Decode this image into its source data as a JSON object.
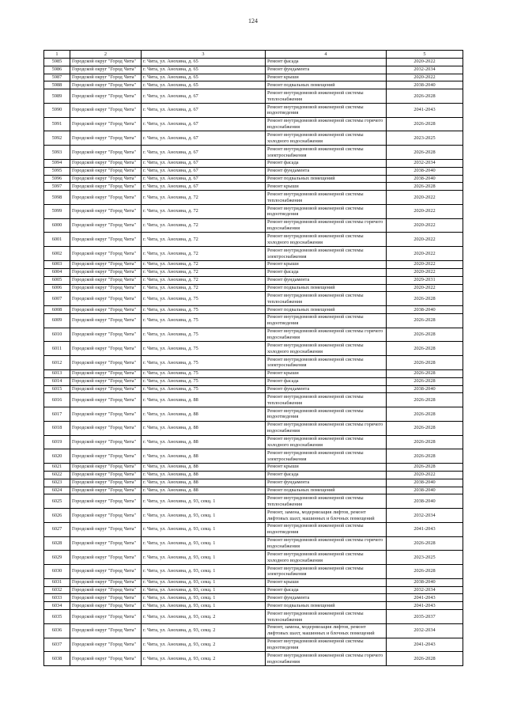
{
  "page": {
    "number": "124"
  },
  "table": {
    "headers": [
      "1",
      "2",
      "3",
      "4",
      "5"
    ],
    "column_names": [
      "index",
      "municipality",
      "address",
      "work-type",
      "period"
    ],
    "rows": [
      [
        "5985",
        "Городской округ \"Город Чита\"",
        "г. Чита, ул. Анохина, д. 65",
        "Ремонт фасада",
        "2020-2022"
      ],
      [
        "5986",
        "Городской округ \"Город Чита\"",
        "г. Чита, ул. Анохина, д. 65",
        "Ремонт фундамента",
        "2032-2034"
      ],
      [
        "5987",
        "Городской округ \"Город Чита\"",
        "г. Чита, ул. Анохина, д. 65",
        "Ремонт крыши",
        "2020-2022"
      ],
      [
        "5988",
        "Городской округ \"Город Чита\"",
        "г. Чита, ул. Анохина, д. 65",
        "Ремонт подвальных помещений",
        "2038-2040"
      ],
      [
        "5989",
        "Городской округ \"Город Чита\"",
        "г. Чита, ул. Анохина, д. 67",
        "Ремонт внутридомовой инженерной системы теплоснабжения",
        "2026-2028"
      ],
      [
        "5990",
        "Городской округ \"Город Чита\"",
        "г. Чита, ул. Анохина, д. 67",
        "Ремонт внутридомовой инженерной системы водоотведения",
        "2041-2043"
      ],
      [
        "5991",
        "Городской округ \"Город Чита\"",
        "г. Чита, ул. Анохина, д. 67",
        "Ремонт внутридомовой инженерной системы горячего водоснабжения",
        "2026-2028"
      ],
      [
        "5992",
        "Городской округ \"Город Чита\"",
        "г. Чита, ул. Анохина, д. 67",
        "Ремонт внутридомовой инженерной системы холодного водоснабжения",
        "2023-2025"
      ],
      [
        "5993",
        "Городской округ \"Город Чита\"",
        "г. Чита, ул. Анохина, д. 67",
        "Ремонт внутридомовой инженерной системы электроснабжения",
        "2026-2028"
      ],
      [
        "5994",
        "Городской округ \"Город Чита\"",
        "г. Чита, ул. Анохина, д. 67",
        "Ремонт фасада",
        "2032-2034"
      ],
      [
        "5995",
        "Городской округ \"Город Чита\"",
        "г. Чита, ул. Анохина, д. 67",
        "Ремонт фундамента",
        "2038-2040"
      ],
      [
        "5996",
        "Городской округ \"Город Чита\"",
        "г. Чита, ул. Анохина, д. 67",
        "Ремонт подвальных помещений",
        "2038-2040"
      ],
      [
        "5997",
        "Городской округ \"Город Чита\"",
        "г. Чита, ул. Анохина, д. 67",
        "Ремонт крыши",
        "2026-2028"
      ],
      [
        "5998",
        "Городской округ \"Город Чита\"",
        "г. Чита, ул. Анохина, д. 72",
        "Ремонт внутридомовой инженерной системы теплоснабжения",
        "2020-2022"
      ],
      [
        "5999",
        "Городской округ \"Город Чита\"",
        "г. Чита, ул. Анохина, д. 72",
        "Ремонт внутридомовой инженерной системы водоотведения",
        "2020-2022"
      ],
      [
        "6000",
        "Городской округ \"Город Чита\"",
        "г. Чита, ул. Анохина, д. 72",
        "Ремонт внутридомовой инженерной системы горячего водоснабжения",
        "2020-2022"
      ],
      [
        "6001",
        "Городской округ \"Город Чита\"",
        "г. Чита, ул. Анохина, д. 72",
        "Ремонт внутридомовой инженерной системы холодного водоснабжения",
        "2020-2022"
      ],
      [
        "6002",
        "Городской округ \"Город Чита\"",
        "г. Чита, ул. Анохина, д. 72",
        "Ремонт внутридомовой инженерной системы электроснабжения",
        "2020-2022"
      ],
      [
        "6003",
        "Городской округ \"Город Чита\"",
        "г. Чита, ул. Анохина, д. 72",
        "Ремонт крыши",
        "2020-2022"
      ],
      [
        "6004",
        "Городской округ \"Город Чита\"",
        "г. Чита, ул. Анохина, д. 72",
        "Ремонт фасада",
        "2020-2022"
      ],
      [
        "6005",
        "Городской округ \"Город Чита\"",
        "г. Чита, ул. Анохина, д. 72",
        "Ремонт фундамента",
        "2029-2031"
      ],
      [
        "6006",
        "Городской округ \"Город Чита\"",
        "г. Чита, ул. Анохина, д. 72",
        "Ремонт подвальных помещений",
        "2020-2022"
      ],
      [
        "6007",
        "Городской округ \"Город Чита\"",
        "г. Чита, ул. Анохина, д. 75",
        "Ремонт внутридомовой инженерной системы теплоснабжения",
        "2026-2028"
      ],
      [
        "6008",
        "Городской округ \"Город Чита\"",
        "г. Чита, ул. Анохина, д. 75",
        "Ремонт подвальных помещений",
        "2038-2040"
      ],
      [
        "6009",
        "Городской округ \"Город Чита\"",
        "г. Чита, ул. Анохина, д. 75",
        "Ремонт внутридомовой инженерной системы водоотведения",
        "2026-2028"
      ],
      [
        "6010",
        "Городской округ \"Город Чита\"",
        "г. Чита, ул. Анохина, д. 75",
        "Ремонт внутридомовой инженерной системы горячего водоснабжения",
        "2026-2028"
      ],
      [
        "6011",
        "Городской округ \"Город Чита\"",
        "г. Чита, ул. Анохина, д. 75",
        "Ремонт внутридомовой инженерной системы холодного водоснабжения",
        "2026-2028"
      ],
      [
        "6012",
        "Городской округ \"Город Чита\"",
        "г. Чита, ул. Анохина, д. 75",
        "Ремонт внутридомовой инженерной системы электроснабжения",
        "2026-2028"
      ],
      [
        "6013",
        "Городской округ \"Город Чита\"",
        "г. Чита, ул. Анохина, д. 75",
        "Ремонт крыши",
        "2026-2028"
      ],
      [
        "6014",
        "Городской округ \"Город Чита\"",
        "г. Чита, ул. Анохина, д. 75",
        "Ремонт фасада",
        "2026-2028"
      ],
      [
        "6015",
        "Городской округ \"Город Чита\"",
        "г. Чита, ул. Анохина, д. 75",
        "Ремонт фундамента",
        "2038-2040"
      ],
      [
        "6016",
        "Городской округ \"Город Чита\"",
        "г. Чита, ул. Анохина, д. 88",
        "Ремонт внутридомовой инженерной системы теплоснабжения",
        "2026-2028"
      ],
      [
        "6017",
        "Городской округ \"Город Чита\"",
        "г. Чита, ул. Анохина, д. 88",
        "Ремонт внутридомовой инженерной системы водоотведения",
        "2026-2028"
      ],
      [
        "6018",
        "Городской округ \"Город Чита\"",
        "г. Чита, ул. Анохина, д. 88",
        "Ремонт внутридомовой инженерной системы горячего водоснабжения",
        "2026-2028"
      ],
      [
        "6019",
        "Городской округ \"Город Чита\"",
        "г. Чита, ул. Анохина, д. 88",
        "Ремонт внутридомовой инженерной системы холодного водоснабжения",
        "2026-2028"
      ],
      [
        "6020",
        "Городской округ \"Город Чита\"",
        "г. Чита, ул. Анохина, д. 88",
        "Ремонт внутридомовой инженерной системы электроснабжения",
        "2026-2028"
      ],
      [
        "6021",
        "Городской округ \"Город Чита\"",
        "г. Чита, ул. Анохина, д. 88",
        "Ремонт крыши",
        "2026-2028"
      ],
      [
        "6022",
        "Городской округ \"Город Чита\"",
        "г. Чита, ул. Анохина, д. 88",
        "Ремонт фасада",
        "2020-2022"
      ],
      [
        "6023",
        "Городской округ \"Город Чита\"",
        "г. Чита, ул. Анохина, д. 88",
        "Ремонт фундамента",
        "2038-2040"
      ],
      [
        "6024",
        "Городской округ \"Город Чита\"",
        "г. Чита, ул. Анохина, д. 88",
        "Ремонт подвальных помещений",
        "2038-2040"
      ],
      [
        "6025",
        "Городской округ \"Город Чита\"",
        "г. Чита, ул. Анохина, д. 93, секц. 1",
        "Ремонт внутридомовой инженерной системы теплоснабжения",
        "2038-2040"
      ],
      [
        "6026",
        "Городской округ \"Город Чита\"",
        "г. Чита, ул. Анохина, д. 93, секц. 1",
        "Ремонт, замена, модернизация лифтов, ремонт лифтовых шахт, машинных и блочных помещений",
        "2032-2034"
      ],
      [
        "6027",
        "Городской округ \"Город Чита\"",
        "г. Чита, ул. Анохина, д. 93, секц. 1",
        "Ремонт внутридомовой инженерной системы водоотведения",
        "2041-2043"
      ],
      [
        "6028",
        "Городской округ \"Город Чита\"",
        "г. Чита, ул. Анохина, д. 93, секц. 1",
        "Ремонт внутридомовой инженерной системы горячего водоснабжения",
        "2026-2028"
      ],
      [
        "6029",
        "Городской округ \"Город Чита\"",
        "г. Чита, ул. Анохина, д. 93, секц. 1",
        "Ремонт внутридомовой инженерной системы холодного водоснабжения",
        "2023-2025"
      ],
      [
        "6030",
        "Городской округ \"Город Чита\"",
        "г. Чита, ул. Анохина, д. 93, секц. 1",
        "Ремонт внутридомовой инженерной системы электроснабжения",
        "2026-2028"
      ],
      [
        "6031",
        "Городской округ \"Город Чита\"",
        "г. Чита, ул. Анохина, д. 93, секц. 1",
        "Ремонт крыши",
        "2038-2040"
      ],
      [
        "6032",
        "Городской округ \"Город Чита\"",
        "г. Чита, ул. Анохина, д. 93, секц. 1",
        "Ремонт фасада",
        "2032-2034"
      ],
      [
        "6033",
        "Городской округ \"Город Чита\"",
        "г. Чита, ул. Анохина, д. 93, секц. 1",
        "Ремонт фундамента",
        "2041-2043"
      ],
      [
        "6034",
        "Городской округ \"Город Чита\"",
        "г. Чита, ул. Анохина, д. 93, секц. 1",
        "Ремонт подвальных помещений",
        "2041-2043"
      ],
      [
        "6035",
        "Городской округ \"Город Чита\"",
        "г. Чита, ул. Анохина, д. 93, секц. 2",
        "Ремонт внутридомовой инженерной системы теплоснабжения",
        "2035-2037"
      ],
      [
        "6036",
        "Городской округ \"Город Чита\"",
        "г. Чита, ул. Анохина, д. 93, секц. 2",
        "Ремонт, замена, модернизация лифтов, ремонт лифтовых шахт, машинных и блочных помещений",
        "2032-2034"
      ],
      [
        "6037",
        "Городской округ \"Город Чита\"",
        "г. Чита, ул. Анохина, д. 93, секц. 2",
        "Ремонт внутридомовой инженерной системы водоотведения",
        "2041-2043"
      ],
      [
        "6038",
        "Городской округ \"Город Чита\"",
        "г. Чита, ул. Анохина, д. 93, секц. 2",
        "Ремонт внутридомовой инженерной системы горячего водоснабжения",
        "2026-2028"
      ]
    ]
  }
}
